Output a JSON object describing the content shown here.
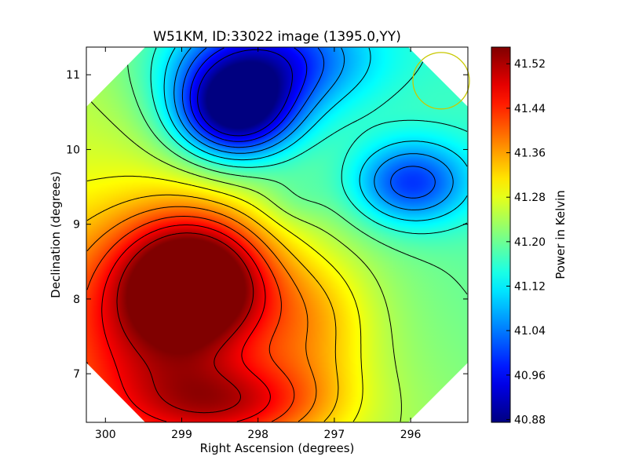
{
  "chart_data": {
    "type": "heatmap",
    "title": "W51KM, ID:33022 image (1395.0,YY)",
    "xlabel": "Right Ascension (degrees)",
    "ylabel": "Declination (degrees)",
    "colorbar_label": "Power in Kelvin",
    "xlim": [
      300.25,
      295.25
    ],
    "ylim": [
      6.35,
      11.37
    ],
    "x_ticks": [
      300,
      299,
      298,
      297,
      296
    ],
    "y_ticks": [
      7,
      8,
      9,
      10,
      11
    ],
    "colorbar_range": [
      40.875,
      41.55
    ],
    "colorbar_ticks": [
      "40.88",
      "40.96",
      "41.04",
      "41.12",
      "41.20",
      "41.28",
      "41.36",
      "41.44",
      "41.52"
    ],
    "colormap": "jet",
    "background_level": 41.23,
    "features": [
      {
        "kind": "minimum",
        "ra": 298.3,
        "dec": 10.5,
        "value": 40.88,
        "sx": 0.55,
        "sy": 0.45
      },
      {
        "kind": "minimum",
        "ra": 297.9,
        "dec": 11.2,
        "value": 41.0,
        "sx": 0.9,
        "sy": 0.5
      },
      {
        "kind": "minimum",
        "ra": 296.0,
        "dec": 9.55,
        "value": 41.03,
        "sx": 0.55,
        "sy": 0.4
      },
      {
        "kind": "maximum",
        "ra": 298.8,
        "dec": 8.25,
        "value": 41.55,
        "sx": 0.65,
        "sy": 0.6
      },
      {
        "kind": "maximum",
        "ra": 299.4,
        "dec": 7.6,
        "value": 41.42,
        "sx": 1.0,
        "sy": 1.1
      },
      {
        "kind": "maximum",
        "ra": 298.3,
        "dec": 6.6,
        "value": 41.4,
        "sx": 0.9,
        "sy": 0.4
      },
      {
        "kind": "minimum",
        "ra": 297.5,
        "dec": 9.35,
        "value": 41.2,
        "sx": 0.3,
        "sy": 0.25
      },
      {
        "kind": "maximum",
        "ra": 297.3,
        "dec": 7.7,
        "value": 41.33,
        "sx": 0.6,
        "sy": 0.7
      }
    ],
    "beam_circle": {
      "ra": 295.6,
      "dec": 10.92,
      "radius_deg": 0.37,
      "color": "#c8c800"
    },
    "grid": false,
    "legend": "none"
  }
}
